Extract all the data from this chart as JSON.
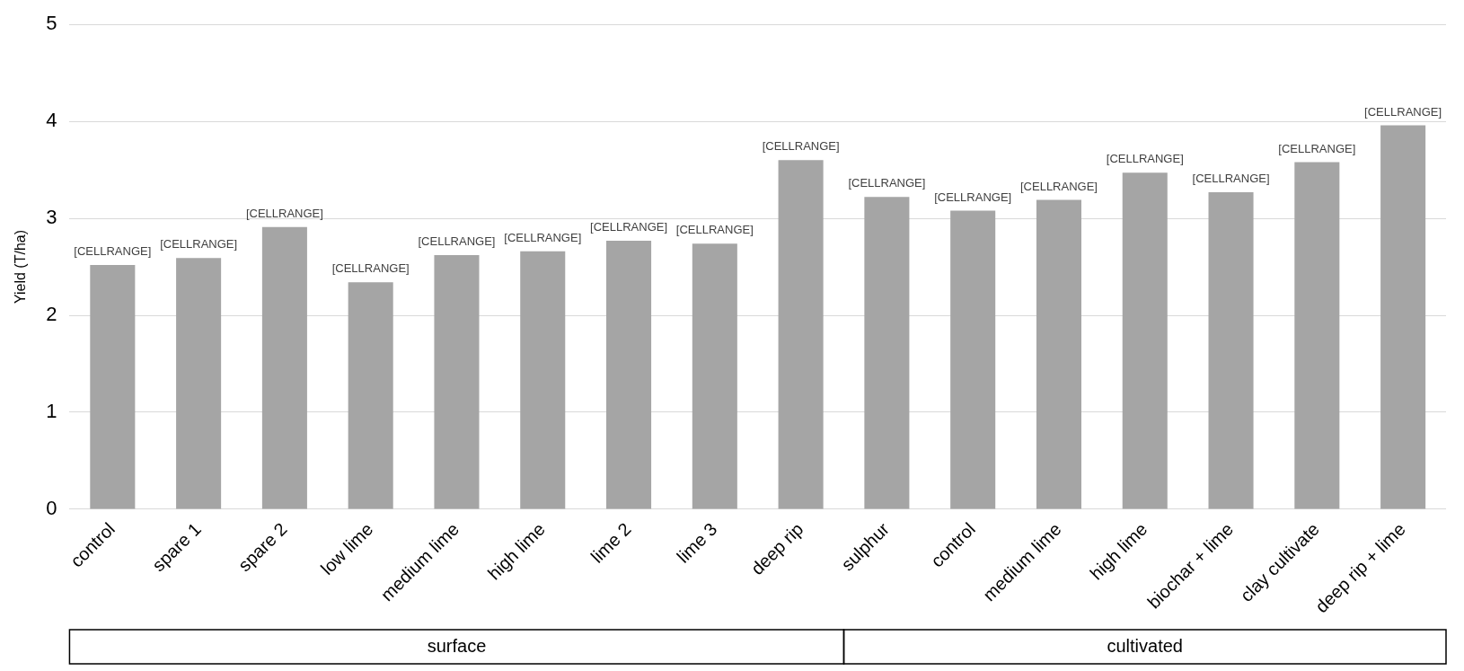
{
  "chart_data": {
    "type": "bar",
    "ylabel": "Yield (T/ha)",
    "categories": [
      "control",
      "spare 1",
      "spare 2",
      "low lime",
      "medium lime",
      "high lime",
      "lime 2",
      "lime 3",
      "deep rip",
      "sulphur",
      "control",
      "medium lime",
      "high lime",
      "biochar + lime",
      "clay cultivate",
      "deep rip + lime"
    ],
    "values": [
      2.52,
      2.59,
      2.91,
      2.34,
      2.62,
      2.66,
      2.77,
      2.74,
      3.6,
      3.22,
      3.08,
      3.19,
      3.47,
      3.27,
      3.58,
      3.96
    ],
    "color": "#a5a5a5",
    "value_labels": [
      "[CELLRANGE]",
      "[CELLRANGE]",
      "[CELLRANGE]",
      "[CELLRANGE]",
      "[CELLRANGE]",
      "[CELLRANGE]",
      "[CELLRANGE]",
      "[CELLRANGE]",
      "[CELLRANGE]",
      "[CELLRANGE]",
      "[CELLRANGE]",
      "[CELLRANGE]",
      "[CELLRANGE]",
      "[CELLRANGE]",
      "[CELLRANGE]",
      "[CELLRANGE]"
    ],
    "annotations": [
      "surface",
      "cultivated"
    ],
    "ylim": [
      0,
      5
    ],
    "yticks": [
      0,
      1,
      2,
      3,
      4,
      5
    ],
    "grid": "y",
    "legend": false
  }
}
